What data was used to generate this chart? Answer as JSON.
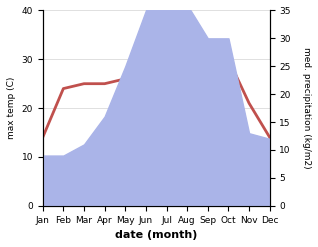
{
  "months": [
    "Jan",
    "Feb",
    "Mar",
    "Apr",
    "May",
    "Jun",
    "Jul",
    "Aug",
    "Sep",
    "Oct",
    "Nov",
    "Dec"
  ],
  "max_temp": [
    14,
    24,
    25,
    25,
    26,
    30,
    35,
    35,
    33,
    30,
    21,
    14
  ],
  "precipitation": [
    9,
    9,
    11,
    16,
    25,
    35,
    43,
    36,
    30,
    30,
    13,
    12
  ],
  "temp_color": "#c0504d",
  "precip_color": "#aab4e8",
  "left_ylim": [
    0,
    40
  ],
  "right_ylim": [
    0,
    35
  ],
  "left_yticks": [
    0,
    10,
    20,
    30,
    40
  ],
  "right_yticks": [
    0,
    5,
    10,
    15,
    20,
    25,
    30,
    35
  ],
  "xlabel": "date (month)",
  "ylabel_left": "max temp (C)",
  "ylabel_right": "med. precipitation (kg/m2)",
  "temp_linewidth": 2.0,
  "fig_width": 3.18,
  "fig_height": 2.47,
  "dpi": 100
}
